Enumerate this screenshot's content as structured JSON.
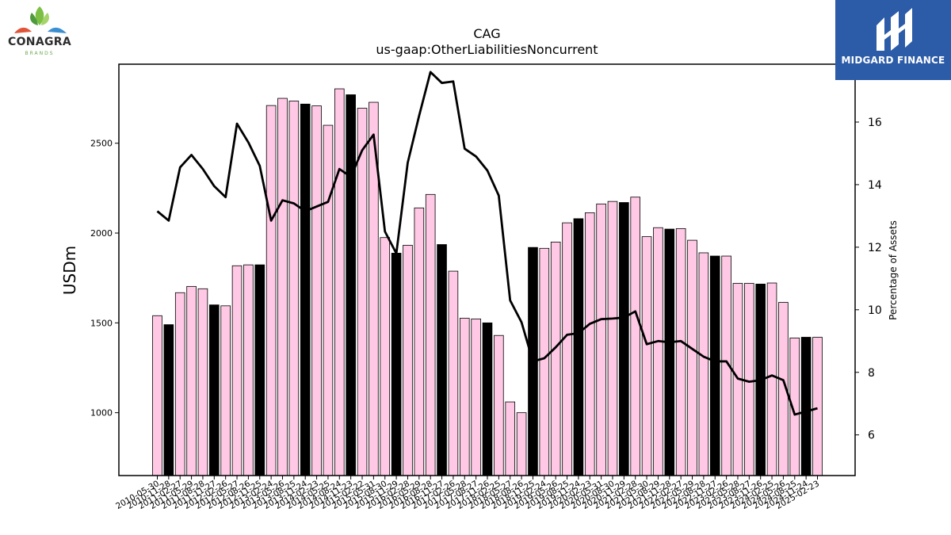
{
  "chart_data": {
    "type": "bar",
    "title": "CAG",
    "subtitle": "us-gaap:OtherLiabilitiesNoncurrent",
    "ylabel": "USDm",
    "y2label": "Percentage of Assets",
    "ylim": [
      650,
      2940
    ],
    "y2lim": [
      4.7,
      17.85
    ],
    "yticks": [
      1000,
      1500,
      2000,
      2500
    ],
    "y2ticks": [
      6,
      8,
      10,
      12,
      14,
      16
    ],
    "colors": {
      "bar_pink": "#ffc8e4",
      "bar_black": "#000000",
      "line": "#000000"
    },
    "categories": [
      "2010-05-30",
      "2010-11-28",
      "2011-02-27",
      "2011-05-29",
      "2011-08-28",
      "2011-11-27",
      "2012-02-26",
      "2012-05-27",
      "2012-08-26",
      "2012-11-25",
      "2013-02-24",
      "2013-05-26",
      "2013-08-25",
      "2013-11-24",
      "2014-02-23",
      "2014-05-25",
      "2014-08-24",
      "2014-11-23",
      "2015-02-22",
      "2015-05-31",
      "2015-08-30",
      "2015-11-29",
      "2016-02-28",
      "2016-05-29",
      "2016-08-28",
      "2016-11-27",
      "2017-02-26",
      "2017-05-28",
      "2017-08-27",
      "2017-11-26",
      "2018-02-25",
      "2018-05-27",
      "2018-08-26",
      "2018-11-25",
      "2019-02-24",
      "2019-05-26",
      "2019-08-25",
      "2019-11-24",
      "2020-02-23",
      "2020-05-31",
      "2020-08-30",
      "2020-11-29",
      "2021-02-28",
      "2021-05-30",
      "2021-08-29",
      "2021-11-28",
      "2022-02-27",
      "2022-05-29",
      "2022-08-28",
      "2022-11-27",
      "2023-02-26",
      "2023-05-28",
      "2023-08-27",
      "2023-11-26",
      "2024-02-25",
      "2024-05-26",
      "2024-08-25",
      "2024-11-24",
      "2025-02-23"
    ],
    "tick_labels": [
      "2010-05-30",
      "2010-11-28",
      "2011-02-27",
      "2011-05-29",
      "2011-08-28",
      "2011-11-27",
      "2012-02-26",
      "2012-05-27",
      "2012-08-26",
      "2012-11-25",
      "2013-02-24",
      "2013-05-26",
      "2013-08-25",
      "2013-11-24",
      "2014-02-23",
      "2014-05-25",
      "2014-08-24",
      "2014-11-23",
      "2015-02-22",
      "2015-05-31",
      "2015-08-30",
      "2015-11-29",
      "2016-02-28",
      "2016-05-29",
      "2016-08-28",
      "2016-11-27",
      "2017-02-26",
      "2017-05-28",
      "2017-08-27",
      "2017-11-26",
      "2018-02-25",
      "2018-05-27",
      "2018-08-26",
      "2018-11-25",
      "2019-02-24",
      "2019-05-26",
      "2019-08-25",
      "2019-11-24",
      "2020-02-23",
      "2020-05-31",
      "2020-08-30",
      "2020-11-29",
      "2021-02-28",
      "2021-05-30",
      "2021-08-29",
      "2021-11-28",
      "2022-02-27",
      "2022-05-29",
      "2022-08-28",
      "2022-11-27",
      "2023-02-26",
      "2023-05-28",
      "2023-08-27",
      "2023-11-26",
      "2024-02-25",
      "2024-05-26",
      "2024-08-25",
      "2024-11-24",
      "2025-02-23"
    ],
    "values": [
      1540,
      1490,
      1668,
      1703,
      1690,
      1600,
      1595,
      1818,
      1823,
      1823,
      2710,
      2750,
      2735,
      2718,
      2708,
      2600,
      2803,
      2770,
      2695,
      2728,
      1975,
      1888,
      1932,
      2140,
      2215,
      1936,
      1788,
      1526,
      1522,
      1500,
      1430,
      1060,
      1000,
      1920,
      1915,
      1950,
      2057,
      2080,
      2113,
      2162,
      2176,
      2170,
      2200,
      1980,
      2030,
      2022,
      2025,
      1960,
      1890,
      1872,
      1872,
      1720,
      1720,
      1716,
      1722,
      1614,
      1416,
      1420,
      1420
    ],
    "highlight": [
      false,
      true,
      false,
      false,
      false,
      true,
      false,
      false,
      false,
      true,
      false,
      false,
      false,
      true,
      false,
      false,
      false,
      true,
      false,
      false,
      false,
      true,
      false,
      false,
      false,
      true,
      false,
      false,
      false,
      true,
      false,
      false,
      false,
      true,
      false,
      false,
      false,
      true,
      false,
      false,
      false,
      true,
      false,
      false,
      false,
      true,
      false,
      false,
      false,
      true,
      false,
      false,
      false,
      true,
      false,
      false,
      false,
      true,
      false
    ],
    "pct_of_assets": [
      13.15,
      12.85,
      14.55,
      14.95,
      14.5,
      13.95,
      13.6,
      15.95,
      15.35,
      14.6,
      12.85,
      13.5,
      13.4,
      13.15,
      13.3,
      13.45,
      14.5,
      14.25,
      15.1,
      15.6,
      12.5,
      11.8,
      14.7,
      16.2,
      17.6,
      17.25,
      17.3,
      15.15,
      14.9,
      14.45,
      13.65,
      10.3,
      9.6,
      8.35,
      8.45,
      8.8,
      9.2,
      9.25,
      9.55,
      9.7,
      9.72,
      9.75,
      9.95,
      8.9,
      9.0,
      8.96,
      9.0,
      8.75,
      8.5,
      8.35,
      8.35,
      7.8,
      7.7,
      7.75,
      7.9,
      7.75,
      6.65,
      6.75,
      6.85
    ]
  },
  "logos": {
    "left": {
      "name": "CONAGRA",
      "sub": "BRANDS"
    },
    "right": {
      "name": "MIDGARD FINANCE"
    }
  }
}
